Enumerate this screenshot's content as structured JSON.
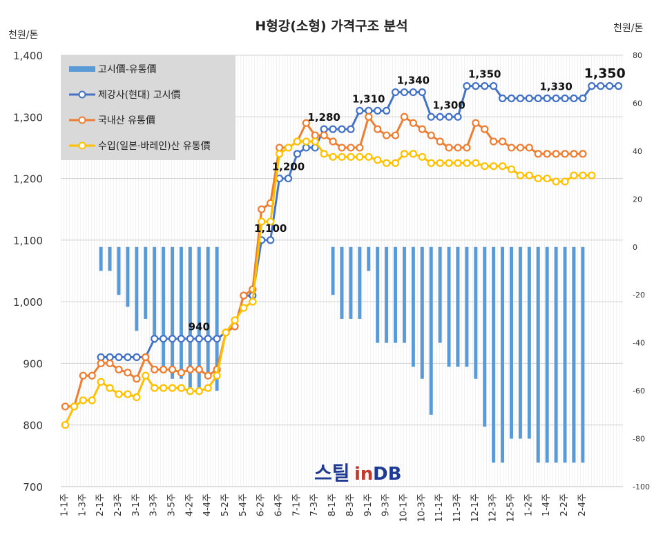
{
  "chart_data": {
    "type": "line",
    "title": "H형강(소형) 가격구조 분석",
    "left_unit": "천원/톤",
    "right_unit": "천원/톤",
    "y_left": {
      "min": 700,
      "max": 1400,
      "ticks": [
        "700",
        "800",
        "900",
        "1,000",
        "1,100",
        "1,200",
        "1,300",
        "1,400"
      ]
    },
    "y_right": {
      "min": -100,
      "max": 80,
      "ticks": [
        "-100",
        "-80",
        "-60",
        "-40",
        "-20",
        "0",
        "20",
        "40",
        "60",
        "80"
      ]
    },
    "grid": true,
    "legend_position": "top-left",
    "x_labels": [
      "1-1주",
      "1-3주",
      "2-1주",
      "2-3주",
      "3-1주",
      "3-3주",
      "3-5주",
      "4-2주",
      "4-4주",
      "5-2주",
      "5-4주",
      "6-2주",
      "6-4주",
      "7-1주",
      "7-3주",
      "8-1주",
      "8-3주",
      "9-1주",
      "9-3주",
      "10-1주",
      "10-3주",
      "11-1주",
      "11-3주",
      "12-1주",
      "12-3주",
      "12-5주",
      "1-2주",
      "1-4주",
      "2-2주",
      "2-4주"
    ],
    "series": [
      {
        "name": "고시價-유통價",
        "kind": "bar",
        "axis": "right",
        "color": "#5b9bd5",
        "values": [
          null,
          null,
          null,
          null,
          -10,
          -10,
          -20,
          -25,
          -35,
          -30,
          -40,
          -50,
          -55,
          -55,
          -60,
          -60,
          -55,
          -60,
          null,
          null,
          null,
          null,
          null,
          null,
          null,
          null,
          null,
          null,
          null,
          null,
          -20,
          -30,
          -30,
          -30,
          -10,
          -40,
          -40,
          -40,
          -40,
          -50,
          -55,
          -70,
          -40,
          -50,
          -50,
          -50,
          -55,
          -75,
          -90,
          -90,
          -80,
          -80,
          -80,
          -90,
          -90,
          -90,
          -90,
          -90,
          -90,
          null,
          null,
          null,
          null
        ]
      },
      {
        "name": "제강사(현대) 고시價",
        "kind": "line",
        "axis": "left",
        "color": "#4472c4",
        "values": [
          null,
          null,
          null,
          null,
          910,
          910,
          910,
          910,
          910,
          910,
          940,
          940,
          940,
          940,
          940,
          940,
          940,
          940,
          950,
          960,
          1010,
          1010,
          1100,
          1100,
          1200,
          1200,
          1240,
          1250,
          1250,
          1280,
          1280,
          1280,
          1280,
          1310,
          1310,
          1310,
          1310,
          1340,
          1340,
          1340,
          1340,
          1300,
          1300,
          1300,
          1300,
          1350,
          1350,
          1350,
          1350,
          1330,
          1330,
          1330,
          1330,
          1330,
          1330,
          1330,
          1330,
          1330,
          1330,
          1350,
          1350,
          1350,
          1350
        ],
        "labels": [
          {
            "i": 15,
            "text": "940"
          },
          {
            "i": 23,
            "text": "1,100"
          },
          {
            "i": 25,
            "text": "1,200"
          },
          {
            "i": 29,
            "text": "1,280"
          },
          {
            "i": 34,
            "text": "1,310"
          },
          {
            "i": 39,
            "text": "1,340"
          },
          {
            "i": 43,
            "text": "1,300"
          },
          {
            "i": 47,
            "text": "1,350"
          },
          {
            "i": 55,
            "text": "1,330"
          },
          {
            "i": 60,
            "text": "1,350"
          }
        ]
      },
      {
        "name": "국내산 유통價",
        "kind": "line",
        "axis": "left",
        "color": "#ed7d31",
        "values": [
          830,
          830,
          880,
          880,
          900,
          900,
          890,
          885,
          875,
          910,
          890,
          890,
          890,
          885,
          890,
          890,
          880,
          890,
          950,
          960,
          1010,
          1020,
          1150,
          1160,
          1250,
          1250,
          1260,
          1290,
          1270,
          1270,
          1260,
          1250,
          1250,
          1250,
          1300,
          1280,
          1270,
          1270,
          1300,
          1290,
          1280,
          1270,
          1260,
          1250,
          1250,
          1250,
          1290,
          1280,
          1260,
          1260,
          1250,
          1250,
          1250,
          1240,
          1240,
          1240,
          1240,
          1240,
          1240,
          null,
          null,
          null,
          null
        ]
      },
      {
        "name": "수입(일본·바레인)산 유통價",
        "kind": "line",
        "axis": "left",
        "color": "#ffc000",
        "values": [
          800,
          830,
          840,
          840,
          870,
          860,
          850,
          850,
          845,
          880,
          860,
          860,
          860,
          860,
          855,
          855,
          860,
          880,
          950,
          970,
          990,
          1000,
          1130,
          1130,
          1240,
          1250,
          1260,
          1260,
          1260,
          1240,
          1235,
          1235,
          1235,
          1235,
          1235,
          1230,
          1225,
          1225,
          1240,
          1240,
          1235,
          1225,
          1225,
          1225,
          1225,
          1225,
          1225,
          1220,
          1220,
          1220,
          1215,
          1205,
          1205,
          1200,
          1200,
          1195,
          1195,
          1205,
          1205,
          1205,
          null,
          null,
          null
        ]
      }
    ]
  },
  "watermark": {
    "text_a": "스틸",
    "text_b": "in",
    "text_c": "DB",
    "color_a": "#1f3a93",
    "color_b": "#c0392b"
  }
}
